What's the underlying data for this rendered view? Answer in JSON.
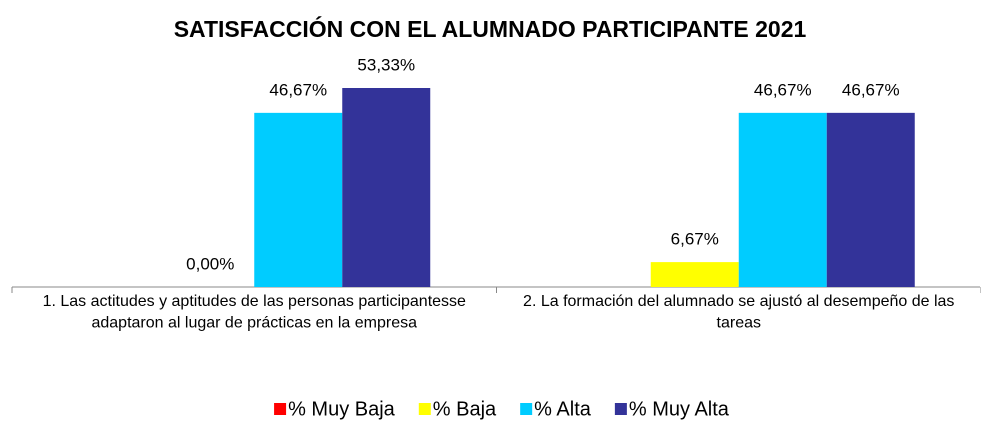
{
  "chart_data": {
    "type": "bar",
    "title": "SATISFACCIÓN CON EL ALUMNADO PARTICIPANTE 2021",
    "categories": [
      "1. Las actitudes y aptitudes de las personas participantesse adaptaron al lugar de prácticas en la empresa",
      "2. La formación del alumnado se ajustó al desempeño de las tareas"
    ],
    "series": [
      {
        "name": "% Muy Baja",
        "color": "#ff0000",
        "values": [
          null,
          null
        ],
        "value_labels": [
          null,
          null
        ]
      },
      {
        "name": "% Baja",
        "color": "#ffff00",
        "values": [
          0,
          6.67
        ],
        "value_labels": [
          "0,00%",
          "6,67%"
        ]
      },
      {
        "name": "% Alta",
        "color": "#00ccff",
        "values": [
          46.67,
          46.67
        ],
        "value_labels": [
          "46,67%",
          "46,67%"
        ]
      },
      {
        "name": "% Muy Alta",
        "color": "#333399",
        "values": [
          53.33,
          46.67
        ],
        "value_labels": [
          "53,33%",
          "46,67%"
        ]
      }
    ],
    "legend": "bottom"
  }
}
